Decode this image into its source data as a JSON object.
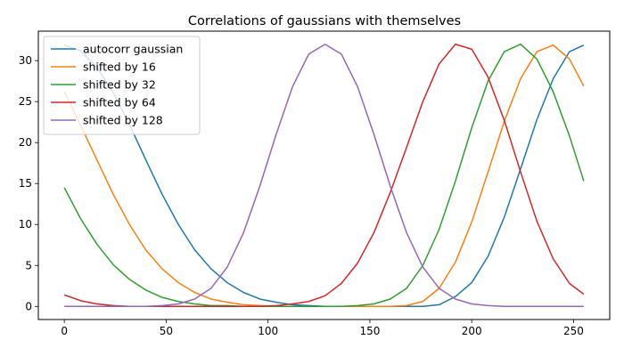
{
  "chart_data": {
    "type": "line",
    "title": "Correlations of gaussians with themselves",
    "xlabel": "",
    "ylabel": "",
    "xlim": [
      -12.75,
      267.75
    ],
    "ylim": [
      -1.6,
      33.6
    ],
    "xticks": [
      0,
      50,
      100,
      150,
      200,
      250
    ],
    "yticks": [
      0,
      5,
      10,
      15,
      20,
      25,
      30
    ],
    "grid": false,
    "legend_position": "top-left",
    "x": [
      0,
      8,
      16,
      24,
      32,
      40,
      48,
      56,
      64,
      72,
      80,
      88,
      96,
      104,
      112,
      120,
      128,
      136,
      144,
      152,
      160,
      168,
      176,
      184,
      192,
      200,
      208,
      216,
      224,
      232,
      240,
      248,
      255
    ],
    "series": [
      {
        "name": "autocorr gaussian",
        "color": "#1f77b4",
        "values": [
          31.9,
          31.2,
          29.2,
          26.1,
          22.2,
          17.9,
          13.7,
          10.0,
          6.9,
          4.6,
          2.9,
          1.7,
          0.9,
          0.5,
          0.2,
          0.1,
          0.0,
          0.0,
          0.0,
          0.0,
          0.0,
          0.0,
          0.0,
          0.2,
          1.2,
          2.9,
          6.1,
          10.9,
          16.8,
          22.8,
          27.8,
          31.1,
          31.9
        ]
      },
      {
        "name": "shifted by 16",
        "color": "#ff7f0e",
        "values": [
          26.2,
          22.1,
          17.9,
          13.7,
          10.0,
          6.9,
          4.6,
          2.9,
          1.7,
          0.9,
          0.5,
          0.2,
          0.1,
          0.0,
          0.0,
          0.0,
          0.0,
          0.0,
          0.0,
          0.0,
          0.0,
          0.1,
          0.6,
          2.2,
          5.4,
          10.3,
          16.4,
          22.6,
          27.8,
          31.1,
          31.9,
          30.2,
          26.9
        ]
      },
      {
        "name": "shifted by 32",
        "color": "#2ca02c",
        "values": [
          14.5,
          10.7,
          7.6,
          5.1,
          3.3,
          2.0,
          1.1,
          0.6,
          0.3,
          0.1,
          0.1,
          0.0,
          0.0,
          0.0,
          0.0,
          0.0,
          0.0,
          0.0,
          0.1,
          0.3,
          0.9,
          2.2,
          5.0,
          9.4,
          15.3,
          21.8,
          27.5,
          31.1,
          32.0,
          30.2,
          26.2,
          20.8,
          15.3
        ]
      },
      {
        "name": "shifted by 64",
        "color": "#d62728",
        "values": [
          1.4,
          0.7,
          0.3,
          0.1,
          0.0,
          0.0,
          0.0,
          0.0,
          0.0,
          0.0,
          0.0,
          0.0,
          0.0,
          0.1,
          0.3,
          0.6,
          1.3,
          2.8,
          5.3,
          9.0,
          13.9,
          19.4,
          25.0,
          29.6,
          32.0,
          31.4,
          28.0,
          22.7,
          16.4,
          10.4,
          5.8,
          2.8,
          1.5
        ]
      },
      {
        "name": "shifted by 128",
        "color": "#9467bd",
        "values": [
          0.0,
          0.0,
          0.0,
          0.0,
          0.0,
          0.0,
          0.1,
          0.3,
          0.9,
          2.2,
          4.8,
          9.0,
          14.7,
          21.0,
          26.8,
          30.8,
          32.0,
          30.8,
          26.8,
          21.0,
          14.7,
          9.0,
          4.8,
          2.2,
          0.9,
          0.3,
          0.1,
          0.0,
          0.0,
          0.0,
          0.0,
          0.0,
          0.0
        ]
      }
    ]
  }
}
